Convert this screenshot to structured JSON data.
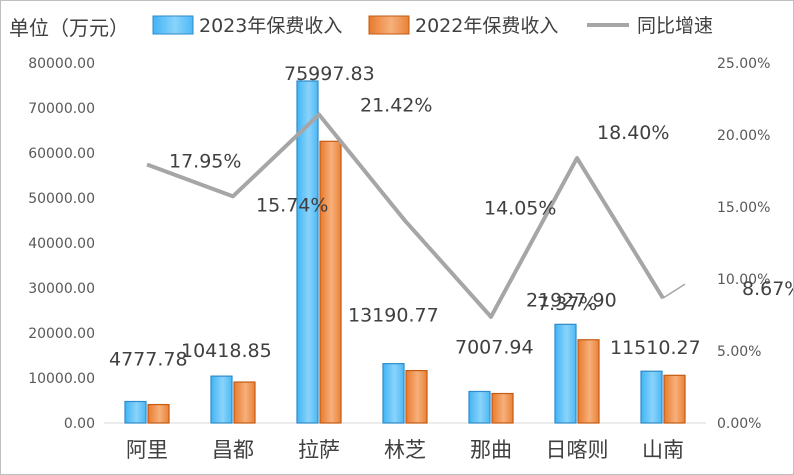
{
  "chart_data": {
    "type": "bar",
    "unit_label": "单位（万元）",
    "categories": [
      "阿里",
      "昌都",
      "拉萨",
      "林芝",
      "那曲",
      "日喀则",
      "山南"
    ],
    "series": [
      {
        "name": "2023年保费收入",
        "kind": "bar",
        "axis": "left",
        "color": "#5BC0F8",
        "values": [
          4777.78,
          10418.85,
          75997.83,
          13190.77,
          7007.94,
          21927.9,
          11510.27
        ],
        "labels": [
          "4777.78",
          "10418.85",
          "75997.83",
          "13190.77",
          "7007.94",
          "21927.90",
          "11510.27"
        ]
      },
      {
        "name": "2022年保费收入",
        "kind": "bar",
        "axis": "left",
        "color": "#ED8A3F",
        "values": [
          4100,
          9100,
          62600,
          11650,
          6550,
          18500,
          10600
        ]
      },
      {
        "name": "同比增速",
        "kind": "line",
        "axis": "right",
        "color": "#A6A6A6",
        "values": [
          17.95,
          15.74,
          21.42,
          14.05,
          7.37,
          18.4,
          8.67
        ],
        "labels": [
          "17.95%",
          "15.74%",
          "21.42%",
          "14.05%",
          "7.37%",
          "18.40%",
          "8.67%"
        ]
      }
    ],
    "y_left": {
      "min": 0,
      "max": 80000,
      "ticks": [
        "0.00",
        "10000.00",
        "20000.00",
        "30000.00",
        "40000.00",
        "50000.00",
        "60000.00",
        "70000.00",
        "80000.00"
      ]
    },
    "y_right": {
      "min": 0,
      "max": 25,
      "ticks": [
        "0.00%",
        "5.00%",
        "10.00%",
        "15.00%",
        "20.00%",
        "25.00%"
      ]
    },
    "grid": false,
    "legend_position": "top"
  }
}
